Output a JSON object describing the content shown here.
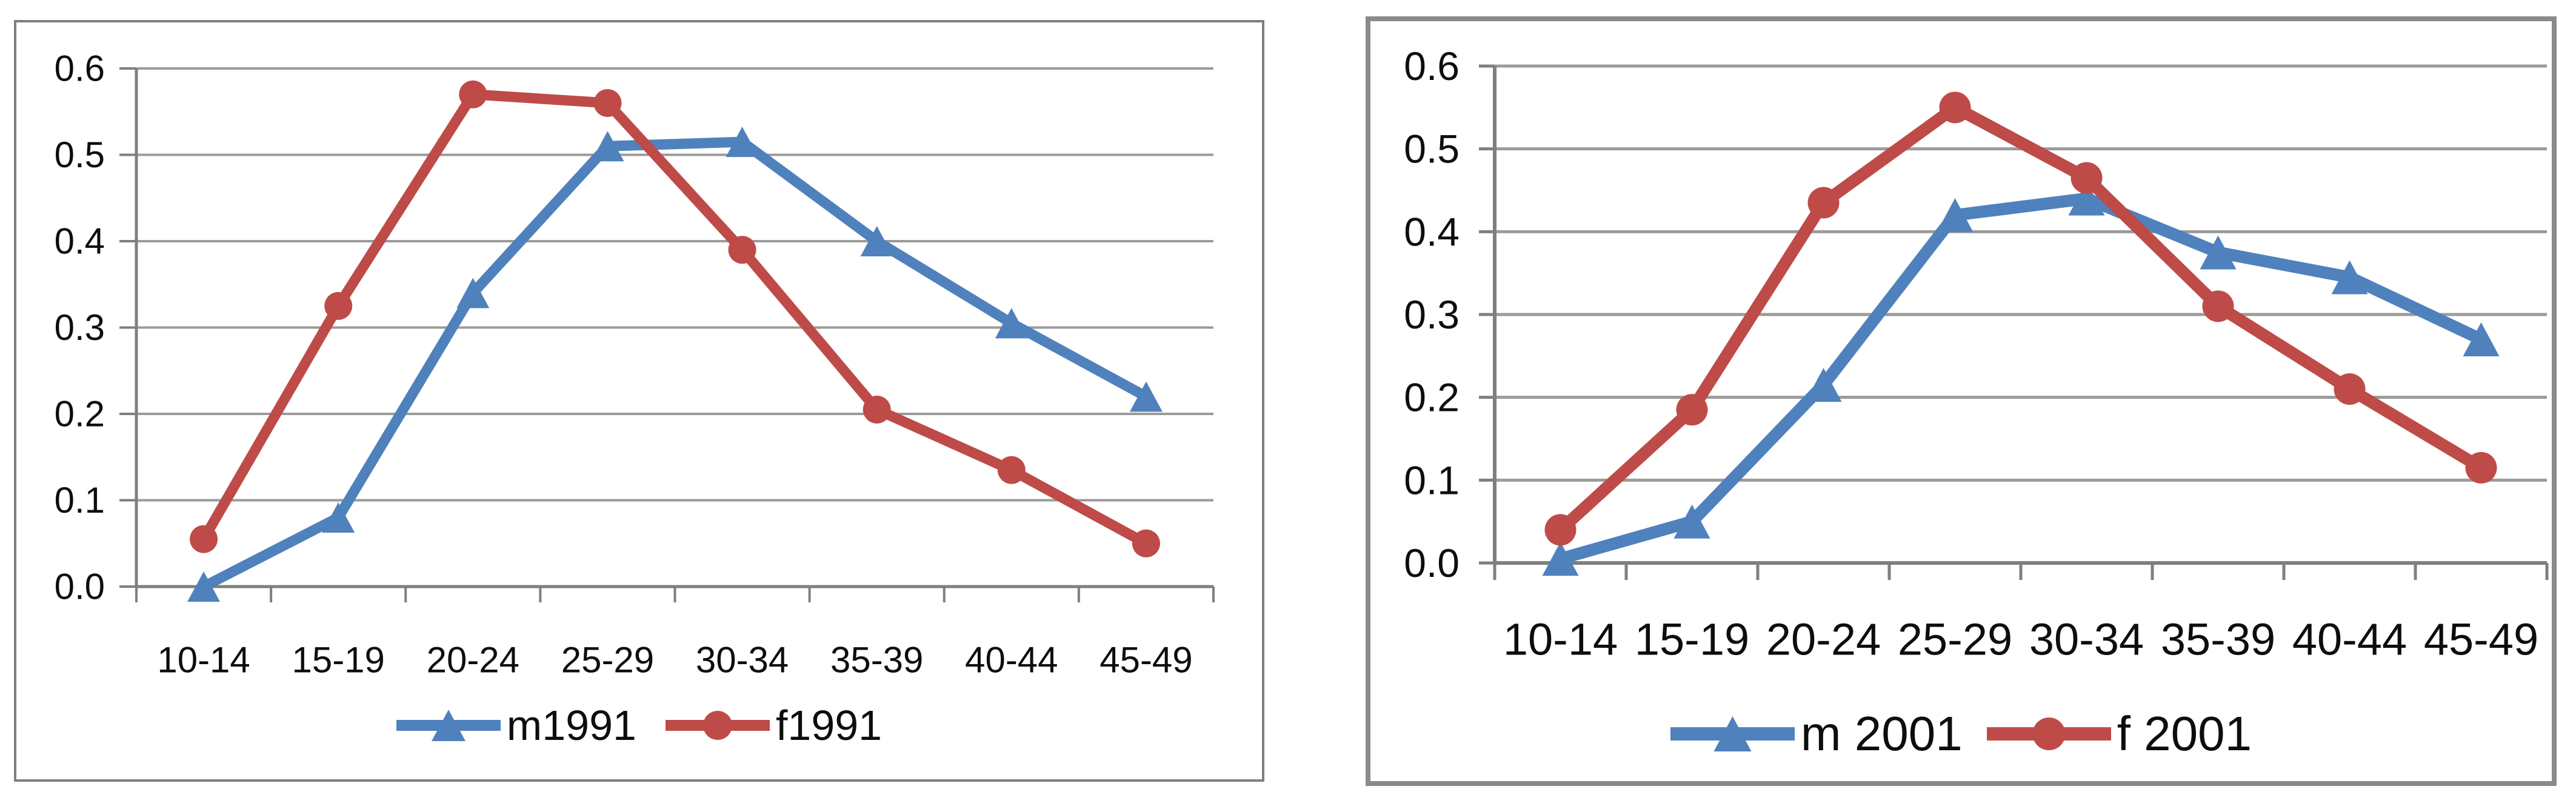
{
  "palette": {
    "series_blue": "#4F81BD",
    "series_red": "#BE4B48",
    "gridline": "#9b9b9b",
    "axis": "#7f7f7f",
    "tick_text": "#0d0d0d",
    "border_left_chart": "#7f7f7f",
    "border_right_chart": "#8a8a8a",
    "background": "#ffffff"
  },
  "chart_data": [
    {
      "type": "line",
      "categories": [
        "10-14",
        "15-19",
        "20-24",
        "25-29",
        "30-34",
        "35-39",
        "40-44",
        "45-49"
      ],
      "yticks": [
        "0.6",
        "0.5",
        "0.4",
        "0.3",
        "0.2",
        "0.1",
        "0.0"
      ],
      "ylim": [
        0,
        0.6
      ],
      "grid": true,
      "legend_position": "bottom",
      "series": [
        {
          "name": "m1991",
          "marker": "triangle",
          "color": "#4F81BD",
          "values": [
            0.0,
            0.08,
            0.34,
            0.51,
            0.515,
            0.4,
            0.305,
            0.22
          ]
        },
        {
          "name": "f1991",
          "marker": "circle",
          "color": "#BE4B48",
          "values": [
            0.055,
            0.325,
            0.57,
            0.56,
            0.39,
            0.205,
            0.135,
            0.05
          ]
        }
      ]
    },
    {
      "type": "line",
      "categories": [
        "10-14",
        "15-19",
        "20-24",
        "25-29",
        "30-34",
        "35-39",
        "40-44",
        "45-49"
      ],
      "yticks": [
        "0.6",
        "0.5",
        "0.4",
        "0.3",
        "0.2",
        "0.1",
        "0.0"
      ],
      "ylim": [
        0,
        0.6
      ],
      "grid": true,
      "legend_position": "bottom",
      "series": [
        {
          "name": "m 2001",
          "marker": "triangle",
          "color": "#4F81BD",
          "values": [
            0.005,
            0.05,
            0.215,
            0.42,
            0.44,
            0.375,
            0.345,
            0.27
          ]
        },
        {
          "name": "f 2001",
          "marker": "circle",
          "color": "#BE4B48",
          "values": [
            0.04,
            0.185,
            0.435,
            0.55,
            0.465,
            0.31,
            0.21,
            0.115
          ]
        }
      ]
    }
  ]
}
